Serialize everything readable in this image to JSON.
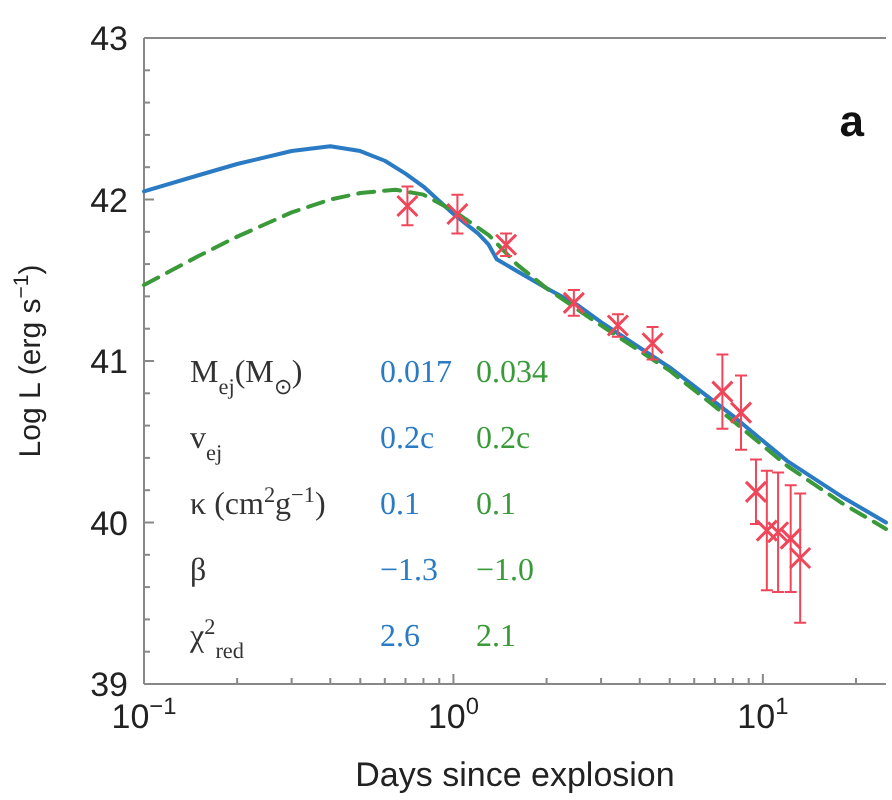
{
  "chart_data": {
    "type": "line",
    "xlabel": "Days since explosion",
    "ylabel": "Log L (erg s$^{−1}$)",
    "log": "x",
    "xlim": [
      0.1,
      25
    ],
    "ylim": [
      39,
      43
    ],
    "xticks": [
      {
        "value": 0.1,
        "label": "10$^{−1}$"
      },
      {
        "value": 0.2,
        "label": null
      },
      {
        "value": 0.3,
        "label": null
      },
      {
        "value": 0.4,
        "label": null
      },
      {
        "value": 0.5,
        "label": null
      },
      {
        "value": 0.6,
        "label": null
      },
      {
        "value": 0.7,
        "label": null
      },
      {
        "value": 0.8,
        "label": null
      },
      {
        "value": 0.9,
        "label": null
      },
      {
        "value": 1,
        "label": "10$^{0}$"
      },
      {
        "value": 2,
        "label": null
      },
      {
        "value": 3,
        "label": null
      },
      {
        "value": 4,
        "label": null
      },
      {
        "value": 5,
        "label": null
      },
      {
        "value": 6,
        "label": null
      },
      {
        "value": 7,
        "label": null
      },
      {
        "value": 8,
        "label": null
      },
      {
        "value": 9,
        "label": null
      },
      {
        "value": 10,
        "label": "10$^{1}$"
      },
      {
        "value": 20,
        "label": null
      }
    ],
    "yticks": [
      39,
      {
        "value": 39.2,
        "label": null
      },
      {
        "value": 39.4,
        "label": null
      },
      {
        "value": 39.6,
        "label": null
      },
      {
        "value": 39.8,
        "label": null
      },
      40,
      {
        "value": 40.2,
        "label": null
      },
      {
        "value": 40.4,
        "label": null
      },
      {
        "value": 40.6,
        "label": null
      },
      {
        "value": 40.8,
        "label": null
      },
      41,
      {
        "value": 41.2,
        "label": null
      },
      {
        "value": 41.4,
        "label": null
      },
      {
        "value": 41.6,
        "label": null
      },
      {
        "value": 41.8,
        "label": null
      },
      42,
      {
        "value": 42.2,
        "label": null
      },
      {
        "value": 42.4,
        "label": null
      },
      {
        "value": 42.6,
        "label": null
      },
      {
        "value": 42.8,
        "label": null
      },
      43
    ],
    "grid": false,
    "series": [
      {
        "line_style": "solid",
        "color": "#2a7bc4",
        "x": [
          0.1,
          0.15,
          0.2,
          0.3,
          0.4,
          0.5,
          0.6,
          0.7,
          0.8,
          1.0,
          1.2,
          1.3,
          1.38,
          2,
          2.5,
          3,
          5,
          8,
          12,
          18,
          25
        ],
        "values": [
          42.05,
          42.15,
          42.22,
          42.3,
          42.33,
          42.3,
          42.24,
          42.16,
          42.08,
          41.91,
          41.79,
          41.72,
          41.63,
          41.45,
          41.35,
          41.24,
          40.96,
          40.66,
          40.38,
          40.16,
          40.0
        ]
      },
      {
        "line_style": "dashed",
        "color": "#3a9a3a",
        "x": [
          0.1,
          0.15,
          0.2,
          0.3,
          0.4,
          0.5,
          0.65,
          0.8,
          1.0,
          1.3,
          1.6,
          2,
          3,
          5,
          8,
          12,
          18,
          25
        ],
        "values": [
          41.47,
          41.65,
          41.77,
          41.92,
          42.0,
          42.04,
          42.06,
          42.03,
          41.93,
          41.78,
          41.6,
          41.45,
          41.22,
          40.94,
          40.63,
          40.35,
          40.12,
          39.96
        ]
      },
      {
        "type": "scatter",
        "marker": "cross",
        "color": "#f0465a",
        "x": [
          0.71,
          1.03,
          1.48,
          2.45,
          3.4,
          4.4,
          7.4,
          8.5,
          9.5,
          10.3,
          11.2,
          12.3,
          13.2
        ],
        "values": [
          41.96,
          41.91,
          41.72,
          41.36,
          41.22,
          41.11,
          40.81,
          40.68,
          40.19,
          39.95,
          39.94,
          39.9,
          39.78
        ],
        "errors": [
          0.12,
          0.12,
          0.07,
          0.08,
          0.07,
          0.1,
          0.23,
          0.23,
          0.2,
          0.37,
          0.37,
          0.33,
          0.4
        ]
      }
    ],
    "annotations": [
      "a",
      "M$_{ej}$(M$_{⊙}$)",
      "0.017",
      "0.034",
      "v$_{ej}$",
      "0.2c",
      "0.2c",
      "κ (cm$^{2}$g$^{−1}$)",
      "0.1",
      "0.1",
      "β",
      "−1.3",
      "−1.0",
      "χ$^{2}$$_{red}$",
      "2.6",
      "2.1"
    ]
  }
}
